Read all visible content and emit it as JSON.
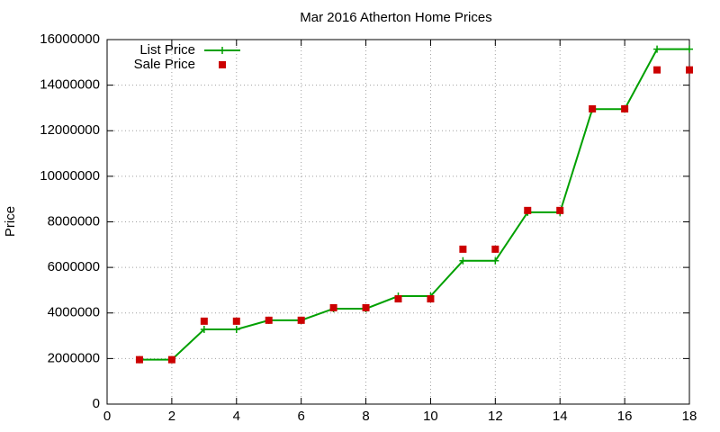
{
  "chart_data": {
    "type": "line",
    "title": "Mar 2016 Atherton Home Prices",
    "y_label": "Price",
    "x": [
      1,
      2,
      3,
      4,
      5,
      6,
      7,
      8,
      9,
      10,
      11,
      12,
      13,
      14,
      15,
      16,
      17,
      18
    ],
    "series": [
      {
        "name": "List Price",
        "color": "#00a000",
        "style": "linespoints",
        "values": [
          1950000,
          1950000,
          3280000,
          3280000,
          3680000,
          3680000,
          4190000,
          4190000,
          4740000,
          4740000,
          6290000,
          6290000,
          8420000,
          8420000,
          12950000,
          12950000,
          15580000,
          15580000
        ]
      },
      {
        "name": "Sale Price",
        "color": "#cc0000",
        "style": "points",
        "values": [
          1950000,
          1950000,
          3640000,
          3640000,
          3680000,
          3680000,
          4230000,
          4230000,
          4620000,
          4620000,
          6800000,
          6800000,
          8500000,
          8500000,
          12960000,
          12960000,
          14670000,
          14670000
        ]
      }
    ],
    "xlim": [
      0,
      18
    ],
    "xticks": [
      0,
      2,
      4,
      6,
      8,
      10,
      12,
      14,
      16,
      18
    ],
    "ylim": [
      0,
      16000000
    ],
    "yticks": [
      0,
      2000000,
      4000000,
      6000000,
      8000000,
      10000000,
      12000000,
      14000000,
      16000000
    ],
    "grid": true,
    "legend": "top-left"
  }
}
